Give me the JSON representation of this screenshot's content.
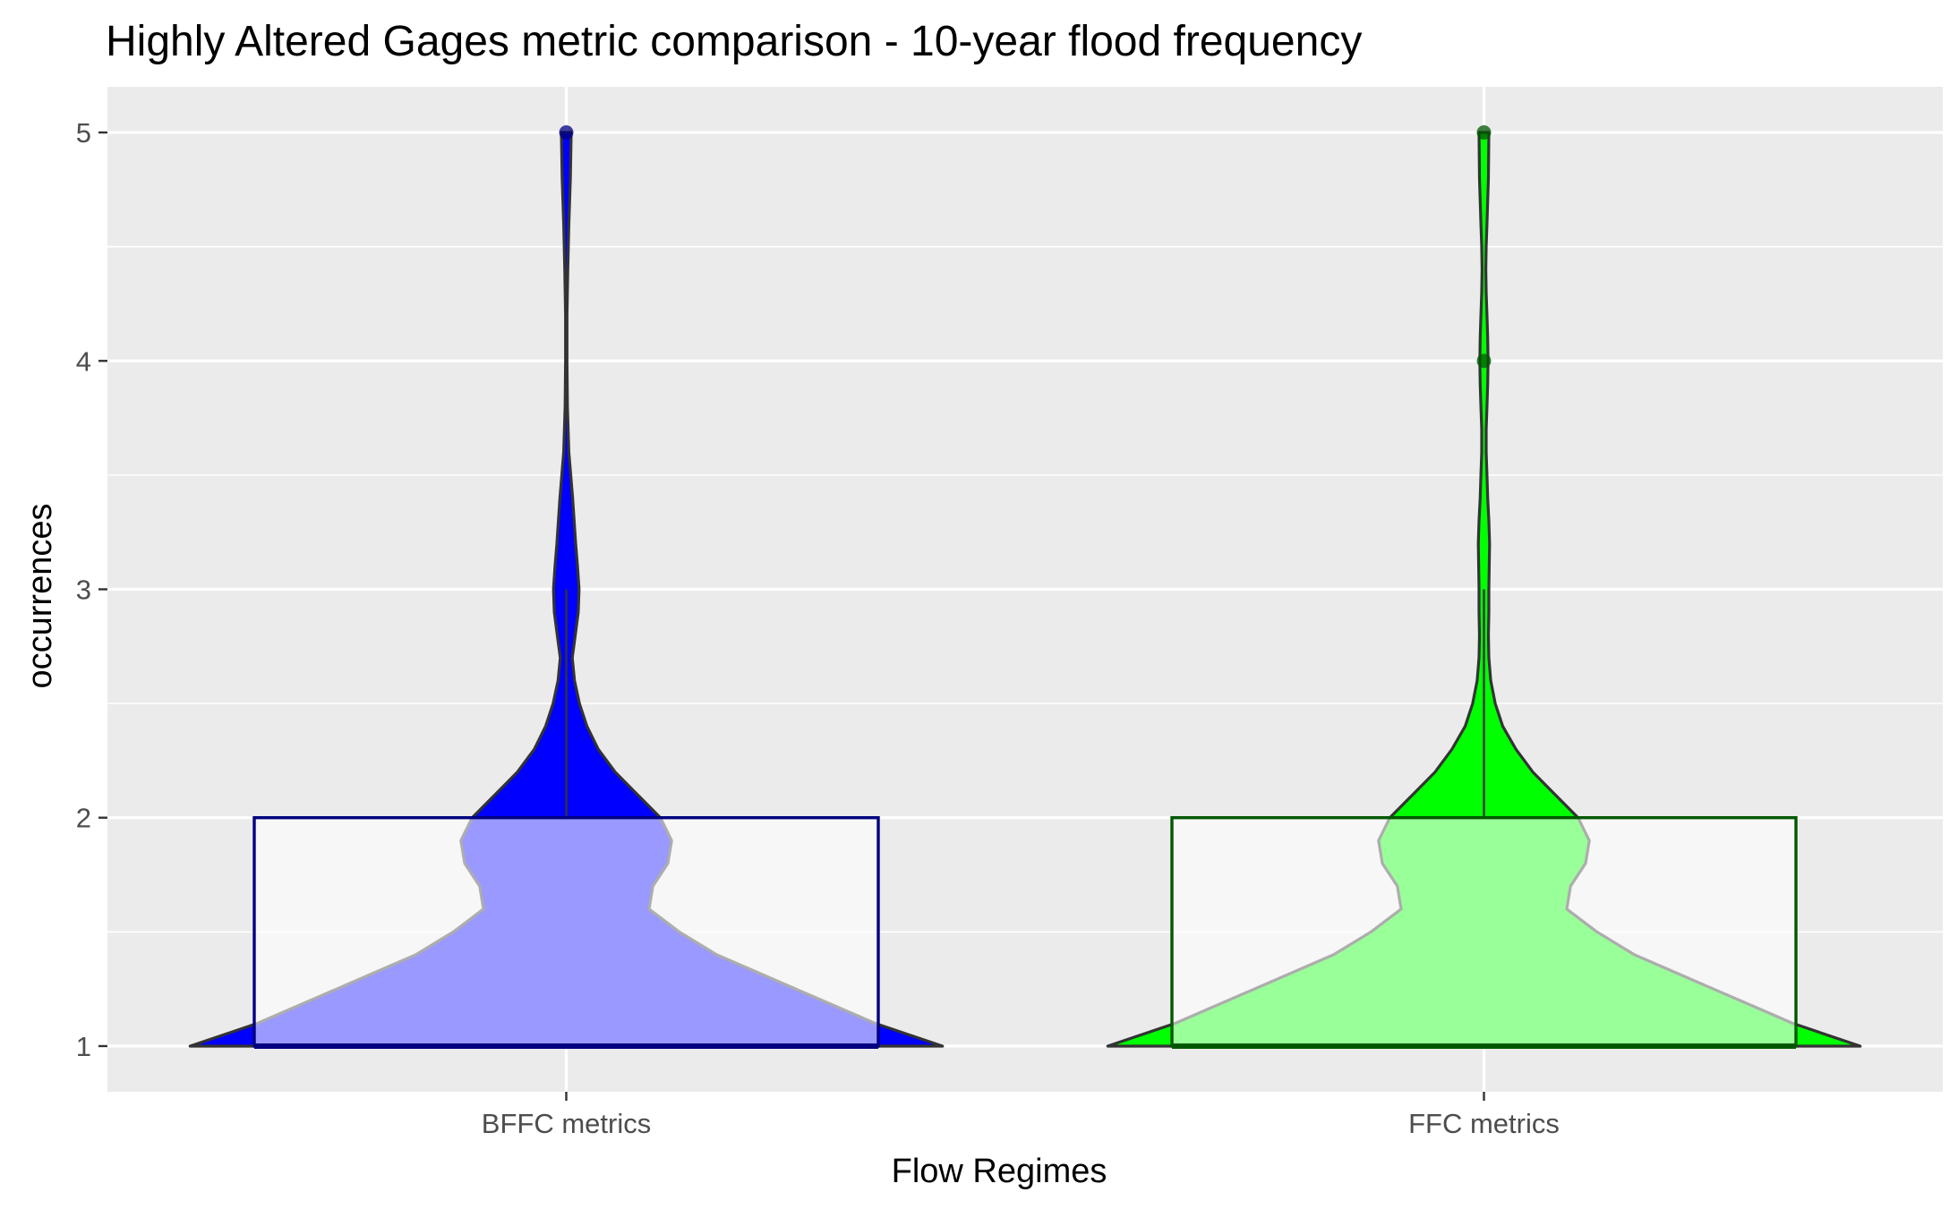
{
  "chart_data": {
    "type": "violin",
    "title": "Highly Altered Gages metric comparison - 10-year flood frequency",
    "xlabel": "Flow Regimes",
    "ylabel": "occurrences",
    "categories": [
      "BFFC metrics",
      "FFC metrics"
    ],
    "ylim": [
      0.8,
      5.2
    ],
    "yticks": [
      1,
      2,
      3,
      4,
      5
    ],
    "grid": true,
    "legend": "none",
    "series": [
      {
        "category": "BFFC metrics",
        "fill": "#0000ff",
        "box_border": "#000080",
        "box": {
          "q1": 1,
          "median": 1,
          "q3": 2,
          "whisker_low": 1,
          "whisker_high": 3
        },
        "outliers": [
          5
        ],
        "density": [
          [
            1.0,
            1.0
          ],
          [
            1.1,
            0.82
          ],
          [
            1.2,
            0.68
          ],
          [
            1.3,
            0.54
          ],
          [
            1.4,
            0.4
          ],
          [
            1.5,
            0.3
          ],
          [
            1.6,
            0.22
          ],
          [
            1.7,
            0.23
          ],
          [
            1.8,
            0.27
          ],
          [
            1.9,
            0.28
          ],
          [
            2.0,
            0.25
          ],
          [
            2.1,
            0.19
          ],
          [
            2.2,
            0.13
          ],
          [
            2.3,
            0.085
          ],
          [
            2.4,
            0.055
          ],
          [
            2.5,
            0.035
          ],
          [
            2.6,
            0.022
          ],
          [
            2.7,
            0.016
          ],
          [
            2.8,
            0.024
          ],
          [
            2.9,
            0.032
          ],
          [
            3.0,
            0.034
          ],
          [
            3.1,
            0.03
          ],
          [
            3.2,
            0.025
          ],
          [
            3.3,
            0.021
          ],
          [
            3.4,
            0.017
          ],
          [
            3.5,
            0.012
          ],
          [
            3.6,
            0.007
          ],
          [
            3.8,
            0.003
          ],
          [
            4.0,
            0.002
          ],
          [
            4.2,
            0.002
          ],
          [
            4.4,
            0.004
          ],
          [
            4.6,
            0.007
          ],
          [
            4.8,
            0.011
          ],
          [
            5.0,
            0.013
          ]
        ]
      },
      {
        "category": "FFC metrics",
        "fill": "#00ff00",
        "box_border": "#005700",
        "box": {
          "q1": 1,
          "median": 1,
          "q3": 2,
          "whisker_low": 1,
          "whisker_high": 3
        },
        "outliers": [
          4,
          5
        ],
        "density": [
          [
            1.0,
            1.0
          ],
          [
            1.1,
            0.82
          ],
          [
            1.2,
            0.68
          ],
          [
            1.3,
            0.54
          ],
          [
            1.4,
            0.4
          ],
          [
            1.5,
            0.3
          ],
          [
            1.6,
            0.22
          ],
          [
            1.7,
            0.23
          ],
          [
            1.8,
            0.27
          ],
          [
            1.9,
            0.28
          ],
          [
            2.0,
            0.25
          ],
          [
            2.1,
            0.19
          ],
          [
            2.2,
            0.13
          ],
          [
            2.3,
            0.085
          ],
          [
            2.4,
            0.05
          ],
          [
            2.5,
            0.03
          ],
          [
            2.6,
            0.018
          ],
          [
            2.7,
            0.013
          ],
          [
            2.8,
            0.012
          ],
          [
            2.9,
            0.013
          ],
          [
            3.0,
            0.013
          ],
          [
            3.1,
            0.014
          ],
          [
            3.2,
            0.015
          ],
          [
            3.3,
            0.013
          ],
          [
            3.4,
            0.01
          ],
          [
            3.5,
            0.008
          ],
          [
            3.6,
            0.006
          ],
          [
            3.7,
            0.006
          ],
          [
            3.8,
            0.008
          ],
          [
            3.9,
            0.01
          ],
          [
            4.0,
            0.011
          ],
          [
            4.1,
            0.01
          ],
          [
            4.2,
            0.008
          ],
          [
            4.3,
            0.006
          ],
          [
            4.4,
            0.005
          ],
          [
            4.5,
            0.006
          ],
          [
            4.6,
            0.008
          ],
          [
            4.7,
            0.01
          ],
          [
            4.8,
            0.012
          ],
          [
            5.0,
            0.013
          ]
        ]
      }
    ]
  }
}
